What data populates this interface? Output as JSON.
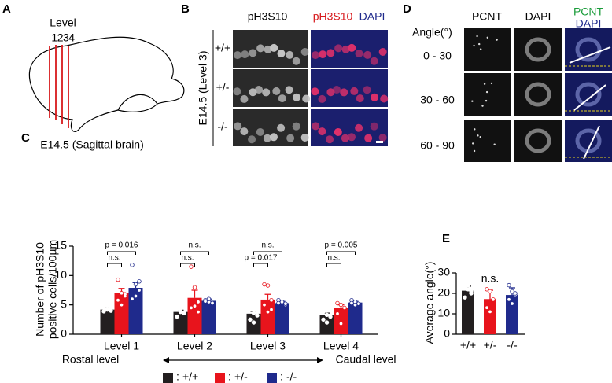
{
  "figure": {
    "A": {
      "label": "A",
      "level": "Level",
      "level_numbers": "1234",
      "caption": "E14.5 (Sagittal brain)"
    },
    "B": {
      "label": "B",
      "col1": "pH3S10",
      "col2a": "pH3S10",
      "col2b": "DAPI",
      "side": "E14.5 (Level 3)",
      "rows": [
        "+/+",
        "+/-",
        "-/-"
      ]
    },
    "D": {
      "label": "D",
      "angle": "Angle(°)",
      "cols": [
        "PCNT",
        "DAPI"
      ],
      "merge": [
        "PCNT",
        "DAPI"
      ],
      "rows": [
        "0 - 30",
        "30 - 60",
        "60 - 90"
      ]
    }
  },
  "chart_data": [
    {
      "type": "bar",
      "panel_label": "C",
      "ylabel": [
        "Number of pH3S10",
        "positive cells/100µm"
      ],
      "categories": [
        "Level 1",
        "Level 2",
        "Level 3",
        "Level 4"
      ],
      "series": [
        {
          "name": "+/+",
          "color": "#231f20",
          "values": [
            4.2,
            3.8,
            3.5,
            3.3
          ],
          "errors": [
            0.3,
            0.3,
            0.4,
            0.3
          ],
          "points": [
            [
              4.5,
              4.2,
              4.0,
              3.9,
              4.3,
              4.6
            ],
            [
              4.3,
              3.8,
              3.6,
              3.0,
              4.0
            ],
            [
              4.3,
              3.6,
              3.2,
              2.5,
              2.0,
              3.8
            ],
            [
              3.8,
              3.3,
              3.0,
              2.5,
              2.0
            ]
          ]
        },
        {
          "name": "+/-",
          "color": "#e8141c",
          "values": [
            7.0,
            6.2,
            5.9,
            4.5
          ],
          "errors": [
            0.8,
            1.3,
            0.9,
            0.5
          ],
          "points": [
            [
              9.3,
              7.0,
              6.5,
              5.8,
              5.0,
              6.8
            ],
            [
              11.5,
              8.0,
              5.5,
              4.5,
              4.8,
              3.8
            ],
            [
              8.5,
              8.3,
              5.8,
              5.0,
              3.8,
              4.2
            ],
            [
              5.3,
              5.0,
              4.5,
              3.5,
              1.8
            ]
          ]
        },
        {
          "name": "-/-",
          "color": "#1f2a8c",
          "values": [
            7.9,
            5.7,
            5.3,
            5.4
          ],
          "errors": [
            0.9,
            0.3,
            0.3,
            0.2
          ],
          "points": [
            [
              11.8,
              8.5,
              7.5,
              6.0,
              6.5,
              9.0
            ],
            [
              5.8,
              5.5,
              5.3,
              5.6,
              6.0
            ],
            [
              5.8,
              5.5,
              5.0,
              5.3,
              5.5,
              5.2
            ],
            [
              5.8,
              5.5,
              5.2,
              5.3,
              5.0
            ]
          ]
        }
      ],
      "comparisons": [
        [
          "n.s.",
          "p = 0.016"
        ],
        [
          "n.s.",
          "n.s."
        ],
        [
          "p = 0.017",
          "n.s."
        ],
        [
          "n.s.",
          "p = 0.005"
        ]
      ],
      "ylim": [
        0,
        15
      ],
      "yticks": [
        0,
        5,
        10,
        15
      ],
      "axis_notes": [
        "Rostal level",
        "Caudal level"
      ],
      "legend_separator": ":"
    },
    {
      "type": "bar",
      "panel_label": "E",
      "ylabel": [
        "Average angle(°)"
      ],
      "categories": [
        "+/+",
        "+/-",
        "-/-"
      ],
      "values": [
        21.3,
        17.2,
        19.2
      ],
      "errors": [
        2.2,
        4.3,
        3.5
      ],
      "colors": [
        "#231f20",
        "#e8141c",
        "#1f2a8c"
      ],
      "points": [
        [
          23.5,
          22,
          20,
          18,
          24,
          21
        ],
        [
          22,
          21,
          17,
          13,
          11
        ],
        [
          24,
          21,
          19,
          17,
          15,
          20
        ]
      ],
      "annotation": "n.s.",
      "ylim": [
        0,
        30
      ],
      "yticks": [
        0,
        10,
        20,
        30
      ]
    }
  ]
}
